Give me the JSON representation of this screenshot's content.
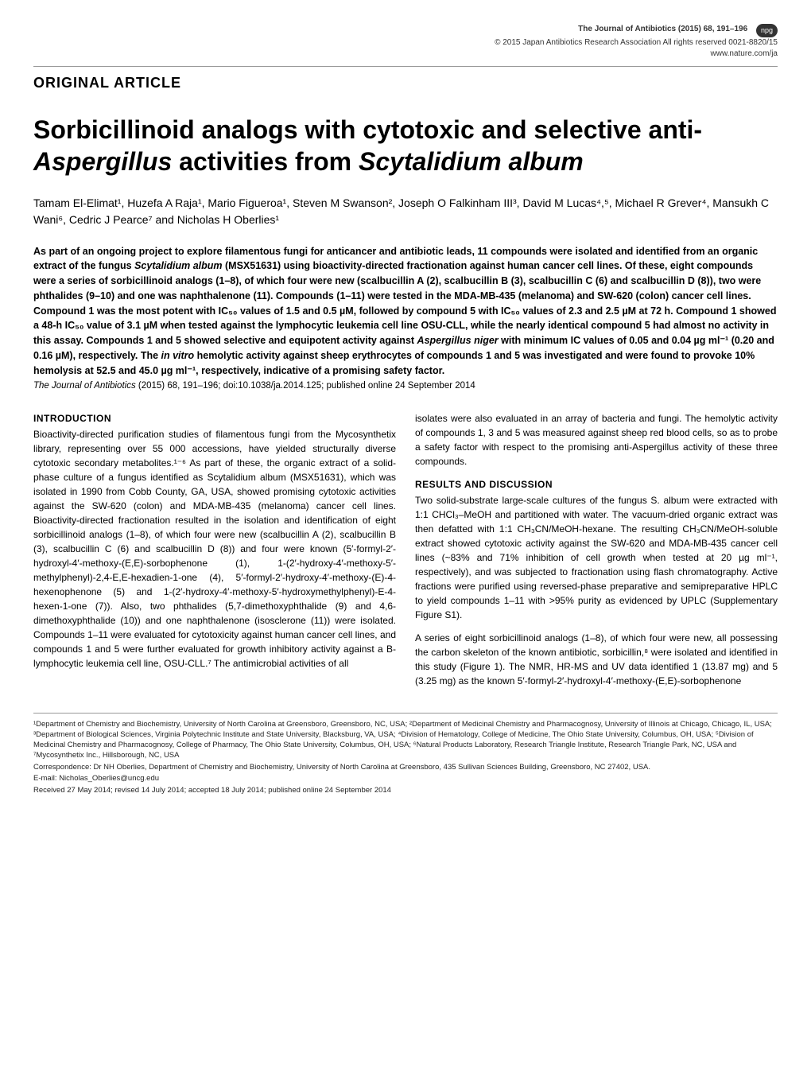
{
  "header": {
    "article_type": "ORIGINAL ARTICLE",
    "journal_line": "The Journal of Antibiotics (2015) 68, 191–196",
    "copyright_line": "© 2015 Japan Antibiotics Research Association  All rights reserved 0021-8820/15",
    "url": "www.nature.com/ja",
    "badge": "npg"
  },
  "title_parts": {
    "a": "Sorbicillinoid analogs with cytotoxic and selective anti-",
    "b": "Aspergillus",
    "c": " activities from ",
    "d": "Scytalidium album"
  },
  "authors": "Tamam El-Elimat¹, Huzefa A Raja¹, Mario Figueroa¹, Steven M Swanson², Joseph O Falkinham III³, David M Lucas⁴,⁵, Michael R Grever⁴, Mansukh C Wani⁶, Cedric J Pearce⁷ and Nicholas H Oberlies¹",
  "abstract": {
    "p1a": "As part of an ongoing project to explore filamentous fungi for anticancer and antibiotic leads, 11 compounds were isolated and identified from an organic extract of the fungus ",
    "p1b": "Scytalidium album",
    "p1c": " (MSX51631) using bioactivity-directed fractionation against human cancer cell lines. Of these, eight compounds were a series of sorbicillinoid analogs (1–8), of which four were new (scalbucillin A (2), scalbucillin B (3), scalbucillin C (6) and scalbucillin D (8)), two were phthalides (9–10) and one was naphthalenone (11). Compounds (1–11) were tested in the MDA-MB-435 (melanoma) and SW-620 (colon) cancer cell lines. Compound 1 was the most potent with IC₅₀ values of 1.5 and 0.5 µM, followed by compound 5 with IC₅₀ values of 2.3 and 2.5 µM at 72 h. Compound 1 showed a 48-h IC₅₀ value of 3.1 µM when tested against the lymphocytic leukemia cell line OSU-CLL, while the nearly identical compound 5 had almost no activity in this assay. Compounds 1 and 5 showed selective and equipotent activity against ",
    "p1d": "Aspergillus niger",
    "p1e": " with minimum IC values of 0.05 and 0.04 µg ml⁻¹ (0.20 and 0.16 µM), respectively. The ",
    "p1f": "in vitro",
    "p1g": " hemolytic activity against sheep erythrocytes of compounds 1 and 5 was investigated and were found to provoke 10% hemolysis at 52.5 and 45.0 µg ml⁻¹, respectively, indicative of a promising safety factor."
  },
  "citation": {
    "journal": "The Journal of Antibiotics",
    "rest": " (2015) 68, 191–196; doi:10.1038/ja.2014.125; published online 24 September 2014"
  },
  "intro": {
    "head": "INTRODUCTION",
    "para": "Bioactivity-directed purification studies of filamentous fungi from the Mycosynthetix library, representing over 55 000 accessions, have yielded structurally diverse cytotoxic secondary metabolites.¹⁻⁶ As part of these, the organic extract of a solid-phase culture of a fungus identified as Scytalidium album (MSX51631), which was isolated in 1990 from Cobb County, GA, USA, showed promising cytotoxic activities against the SW-620 (colon) and MDA-MB-435 (melanoma) cancer cell lines. Bioactivity-directed fractionation resulted in the isolation and identification of eight sorbicillinoid analogs (1–8), of which four were new (scalbucillin A (2), scalbucillin B (3), scalbucillin C (6) and scalbucillin D (8)) and four were known (5′-formyl-2′-hydroxyl-4′-methoxy-(E,E)-sorbophenone (1), 1-(2′-hydroxy-4′-methoxy-5′-methylphenyl)-2,4-E,E-hexadien-1-one (4), 5′-formyl-2′-hydroxy-4′-methoxy-(E)-4-hexenophenone (5) and 1-(2′-hydroxy-4′-methoxy-5′-hydroxymethylphenyl)-E-4-hexen-1-one (7)). Also, two phthalides (5,7-dimethoxyphthalide (9) and 4,6-dimethoxyphthalide (10)) and one naphthalenone (isosclerone (11)) were isolated. Compounds 1–11 were evaluated for cytotoxicity against human cancer cell lines, and compounds 1 and 5 were further evaluated for growth inhibitory activity against a B-lymphocytic leukemia cell line, OSU-CLL.⁷ The antimicrobial activities of all"
  },
  "col2_top": "isolates were also evaluated in an array of bacteria and fungi. The hemolytic activity of compounds 1, 3 and 5 was measured against sheep red blood cells, so as to probe a safety factor with respect to the promising anti-Aspergillus activity of these three compounds.",
  "results": {
    "head": "RESULTS AND DISCUSSION",
    "p1": "Two solid-substrate large-scale cultures of the fungus S. album were extracted with 1:1 CHCl₃–MeOH and partitioned with water. The vacuum-dried organic extract was then defatted with 1:1 CH₃CN/MeOH-hexane. The resulting CH₃CN/MeOH-soluble extract showed cytotoxic activity against the SW-620 and MDA-MB-435 cancer cell lines (~83% and 71% inhibition of cell growth when tested at 20 µg ml⁻¹, respectively), and was subjected to fractionation using flash chromatography. Active fractions were purified using reversed-phase preparative and semipreparative HPLC to yield compounds 1–11 with >95% purity as evidenced by UPLC (Supplementary Figure S1).",
    "p2": "A series of eight sorbicillinoid analogs (1–8), of which four were new, all possessing the carbon skeleton of the known antibiotic, sorbicillin,⁸ were isolated and identified in this study (Figure 1). The NMR, HR-MS and UV data identified 1 (13.87 mg) and 5 (3.25 mg) as the known 5′-formyl-2′-hydroxyl-4′-methoxy-(E,E)-sorbophenone"
  },
  "affiliations": {
    "text": "¹Department of Chemistry and Biochemistry, University of North Carolina at Greensboro, Greensboro, NC, USA; ²Department of Medicinal Chemistry and Pharmacognosy, University of Illinois at Chicago, Chicago, IL, USA; ³Department of Biological Sciences, Virginia Polytechnic Institute and State University, Blacksburg, VA, USA; ⁴Division of Hematology, College of Medicine, The Ohio State University, Columbus, OH, USA; ⁵Division of Medicinal Chemistry and Pharmacognosy, College of Pharmacy, The Ohio State University, Columbus, OH, USA; ⁶Natural Products Laboratory, Research Triangle Institute, Research Triangle Park, NC, USA and ⁷Mycosynthetix Inc., Hillsborough, NC, USA",
    "correspondence": "Correspondence: Dr NH Oberlies, Department of Chemistry and Biochemistry, University of North Carolina at Greensboro, 435 Sullivan Sciences Building, Greensboro, NC 27402, USA.",
    "email": "E-mail: Nicholas_Oberlies@uncg.edu",
    "received": "Received 27 May 2014; revised 14 July 2014; accepted 18 July 2014; published online 24 September 2014"
  },
  "colors": {
    "text": "#000000",
    "rule": "#999999",
    "badge_bg": "#333333",
    "badge_fg": "#ffffff"
  }
}
